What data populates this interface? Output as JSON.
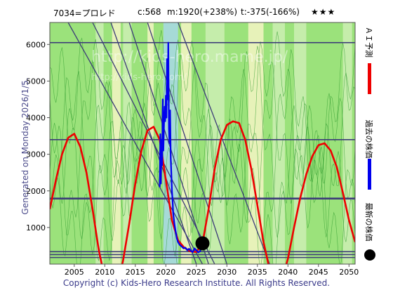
{
  "header": {
    "ticker": "7034=プロレド",
    "current": "c:568",
    "max": "m:1920(+238%)",
    "min": "t:-375(-166%)",
    "stars": "★★★"
  },
  "side_label": "Generated on Monday 2026/1/5.",
  "legend": {
    "forecast": "ＡＩ予測",
    "past": "過去の株価",
    "latest": "最新の株価"
  },
  "watermark_lines": [
    "http://kids-hero.mame.jp/",
    "http://kids-hero.com/"
  ],
  "copyright": "Copyright (c) Kids-Hero Research Institute. All Rights Reserved.",
  "colors": {
    "band_green": "#9be27b",
    "band_light": "#cdeeb4",
    "band_yellow": "#f4f4c4",
    "band_blue": "#a8d8e8",
    "forecast": "#ee0000",
    "past": "#0000ee",
    "lines": "#3c3c78",
    "thin_green": "#2c9a2c"
  },
  "chart_data": {
    "type": "line",
    "xlim": [
      2001,
      2051
    ],
    "ylim": [
      0,
      6600
    ],
    "xticks": [
      2005,
      2010,
      2015,
      2020,
      2025,
      2030,
      2035,
      2040,
      2045,
      2050
    ],
    "yticks": [
      1000,
      2000,
      3000,
      4000,
      5000,
      6000
    ],
    "horizontal_levels": [
      6050,
      3400,
      1800,
      1780,
      340,
      260,
      180
    ],
    "series": [
      {
        "key": "forecast",
        "x": [
          2001,
          2002,
          2003,
          2004,
          2005,
          2006,
          2007,
          2008,
          2009,
          2010,
          2011,
          2012,
          2013,
          2014,
          2015,
          2016,
          2017,
          2018,
          2019,
          2020,
          2021,
          2022,
          2023,
          2024,
          2025,
          2026,
          2027,
          2028,
          2029,
          2030,
          2031,
          2032,
          2033,
          2034,
          2035,
          2036,
          2037,
          2038,
          2039,
          2040,
          2041,
          2042,
          2043,
          2044,
          2045,
          2046,
          2047,
          2048,
          2049,
          2050,
          2051
        ],
        "y": [
          1500,
          2300,
          3000,
          3450,
          3560,
          3200,
          2500,
          1500,
          400,
          -400,
          -800,
          -650,
          100,
          1100,
          2200,
          3100,
          3650,
          3750,
          3400,
          2300,
          1200,
          650,
          450,
          350,
          330,
          560,
          1500,
          2600,
          3400,
          3800,
          3900,
          3850,
          3400,
          2600,
          1600,
          600,
          -150,
          -500,
          -450,
          150,
          1000,
          1800,
          2450,
          2950,
          3250,
          3300,
          3100,
          2650,
          1950,
          1200,
          600
        ]
      },
      {
        "key": "past",
        "x": [
          2019.0,
          2019.1,
          2019.2,
          2019.3,
          2019.4,
          2019.5,
          2019.6,
          2019.7,
          2019.8,
          2019.9,
          2020.0,
          2020.1,
          2020.2,
          2020.3,
          2020.4,
          2020.5,
          2020.6,
          2020.7,
          2020.8,
          2020.9,
          2021.0,
          2021.1,
          2021.2,
          2021.4,
          2021.6,
          2021.8,
          2022.0,
          2022.3,
          2022.6,
          2022.9,
          2023.2,
          2023.5,
          2023.8,
          2024.1,
          2024.4,
          2024.7,
          2025.0,
          2025.3,
          2025.6,
          2025.9,
          2026.0
        ],
        "y": [
          2100,
          3550,
          2200,
          3400,
          2700,
          4500,
          3100,
          3800,
          4300,
          3900,
          4600,
          4000,
          5600,
          4500,
          6050,
          3700,
          3300,
          4200,
          2900,
          2500,
          2000,
          1750,
          1400,
          1100,
          900,
          700,
          600,
          520,
          480,
          430,
          450,
          380,
          420,
          360,
          330,
          430,
          380,
          320,
          350,
          520,
          568
        ]
      }
    ],
    "latest_point": {
      "x": 2026,
      "y": 568
    }
  }
}
